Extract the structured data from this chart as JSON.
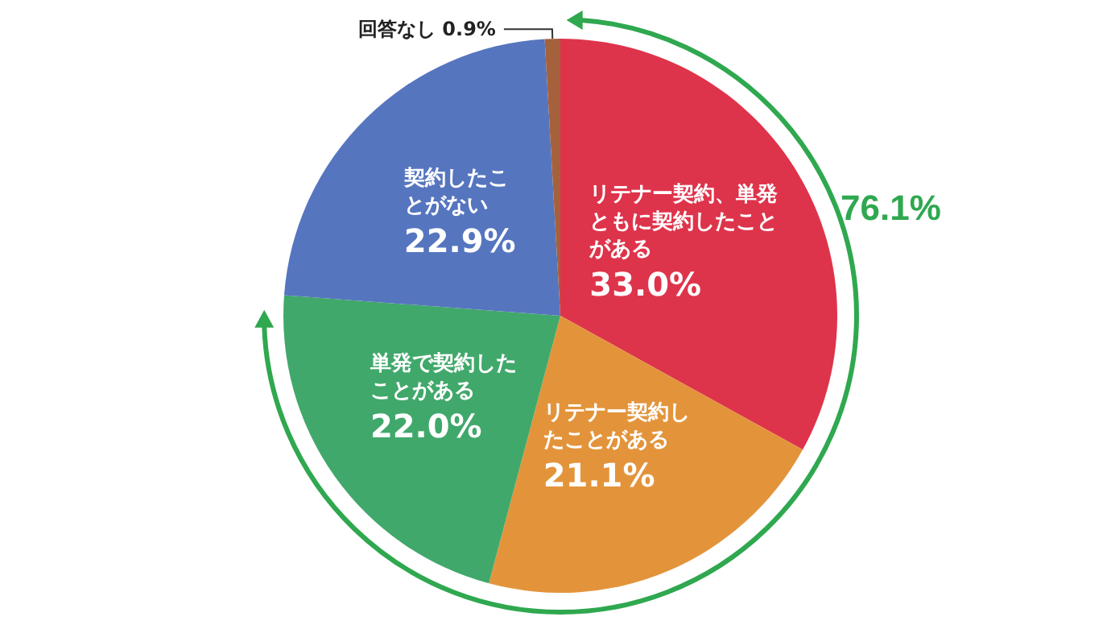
{
  "chart_data": {
    "type": "pie",
    "categories": [
      "リテナー契約、単発ともに契約したことがある",
      "リテナー契約したことがある",
      "単発で契約したことがある",
      "契約したことがない",
      "回答なし"
    ],
    "values": [
      33.0,
      21.1,
      22.0,
      22.9,
      0.9
    ],
    "value_labels": [
      "33.0%",
      "21.1%",
      "22.0%",
      "22.9%",
      "0.9%"
    ],
    "colors": [
      "#de344b",
      "#e3943b",
      "#41a86b",
      "#5675bf",
      "#a5613c"
    ],
    "annotations": [
      "76.1%"
    ],
    "legend": false
  }
}
